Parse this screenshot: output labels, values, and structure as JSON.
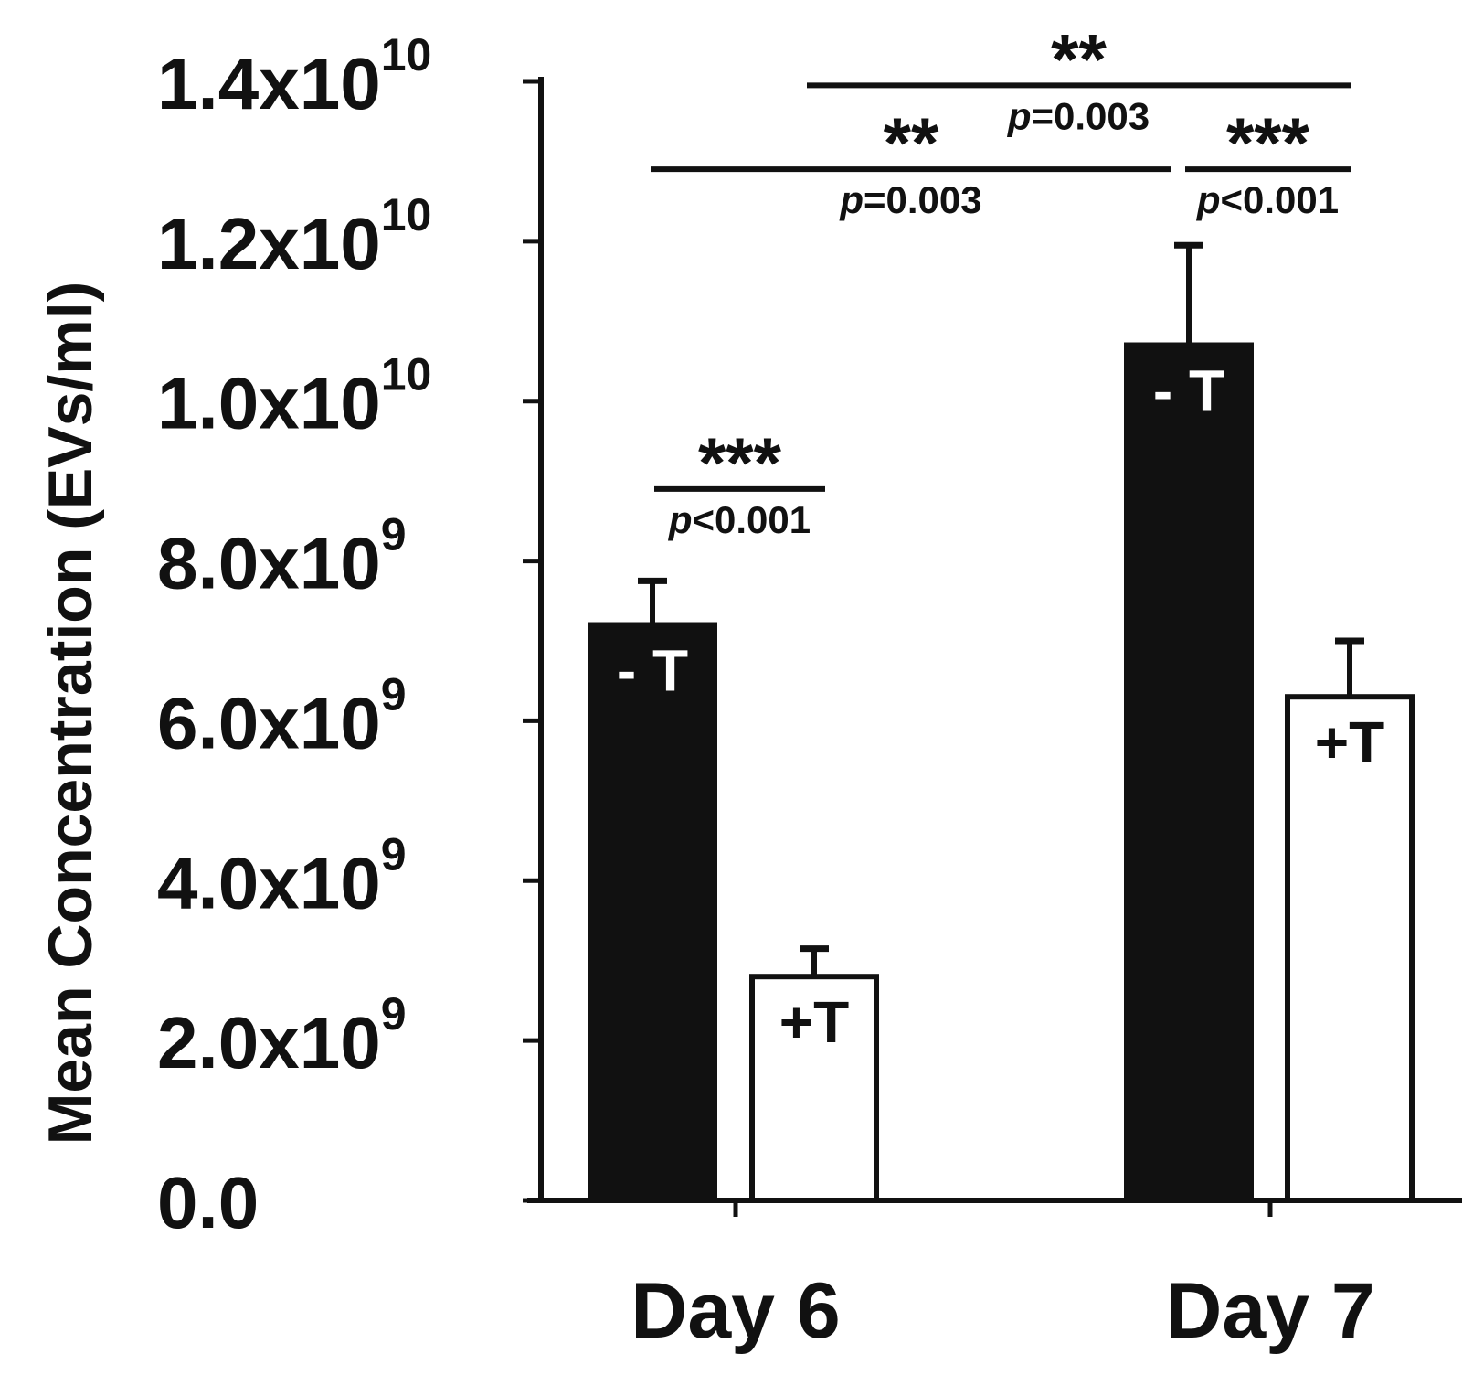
{
  "chart_data": {
    "type": "bar",
    "ylabel": "Mean Concentration (EVs/ml)",
    "ylim": [
      0,
      14000000000
    ],
    "y_ticks": [
      {
        "value": 0,
        "mantissa": "0.0",
        "times": "",
        "exp": ""
      },
      {
        "value": 2000000000,
        "mantissa": "2.0x10",
        "times": "",
        "exp": "9"
      },
      {
        "value": 4000000000,
        "mantissa": "4.0x10",
        "times": "",
        "exp": "9"
      },
      {
        "value": 6000000000,
        "mantissa": "6.0x10",
        "times": "",
        "exp": "9"
      },
      {
        "value": 8000000000,
        "mantissa": "8.0x10",
        "times": "",
        "exp": "9"
      },
      {
        "value": 10000000000,
        "mantissa": "1.0x10",
        "times": "",
        "exp": "10"
      },
      {
        "value": 12000000000,
        "mantissa": "1.2x10",
        "times": "",
        "exp": "10"
      },
      {
        "value": 14000000000,
        "mantissa": "1.4x10",
        "times": "",
        "exp": "10"
      }
    ],
    "categories": [
      "Day 6",
      "Day 7"
    ],
    "series": [
      {
        "name": "- T",
        "label": "- T",
        "color": "#111111",
        "values": [
          7200000000,
          10700000000
        ],
        "errors": [
          550000000,
          1250000000
        ]
      },
      {
        "name": "+T",
        "label": "+T",
        "color": "#ffffff",
        "values": [
          2800000000,
          6300000000
        ],
        "errors": [
          350000000,
          700000000
        ]
      }
    ],
    "annotations": [
      {
        "stars": "***",
        "p": "p",
        "ptext": "<0.001",
        "from": [
          0,
          0
        ],
        "to": [
          0,
          1
        ],
        "level": 8900000000
      },
      {
        "stars": "**",
        "p": "p",
        "ptext": "=0.003",
        "from": [
          0,
          0
        ],
        "to": [
          1,
          0
        ],
        "level": 12900000000
      },
      {
        "stars": "***",
        "p": "p",
        "ptext": "<0.001",
        "from": [
          1,
          0
        ],
        "to": [
          1,
          1
        ],
        "level": 12900000000
      },
      {
        "stars": "**",
        "p": "p",
        "ptext": "=0.003",
        "from": [
          0,
          1
        ],
        "to": [
          1,
          1
        ],
        "level": 13950000000
      }
    ]
  }
}
